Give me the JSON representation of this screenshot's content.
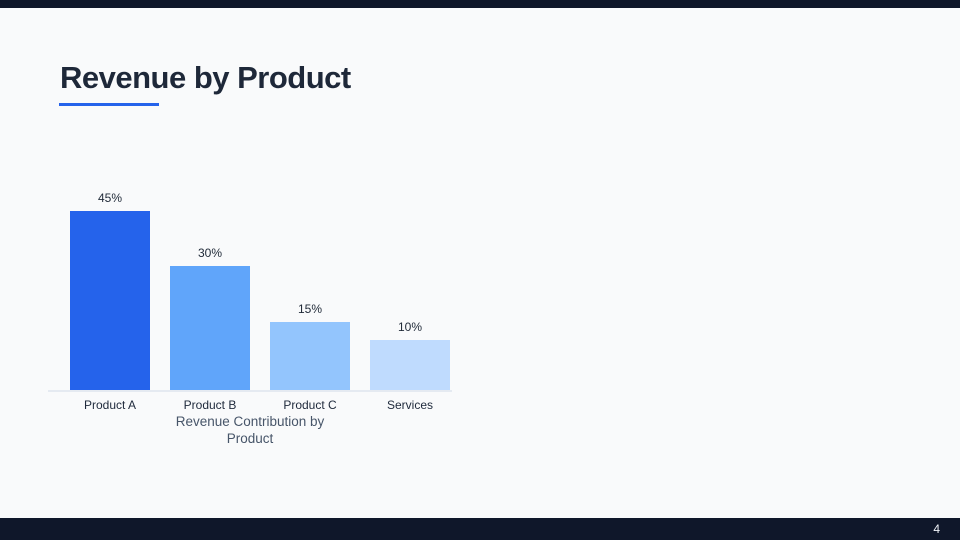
{
  "slide": {
    "title": "Revenue by Product",
    "page_number": "4",
    "accent_color": "#2563eb",
    "bar_color_dark": "#0f172a",
    "background_color": "#f9fafb"
  },
  "chart_data": {
    "type": "bar",
    "title": "Revenue Contribution by Product",
    "categories": [
      "Product A",
      "Product B",
      "Product C",
      "Services"
    ],
    "values": [
      45,
      30,
      15,
      10
    ],
    "value_labels": [
      "45%",
      "30%",
      "15%",
      "10%"
    ],
    "bar_colors": [
      "#2563eb",
      "#60a5fa",
      "#93c5fd",
      "#bfdbfe"
    ],
    "xlabel": "",
    "ylabel": "",
    "ylim": [
      0,
      50
    ],
    "grid": false,
    "legend": false,
    "value_label_position": "above-bar",
    "caption_position": "below-chart"
  }
}
